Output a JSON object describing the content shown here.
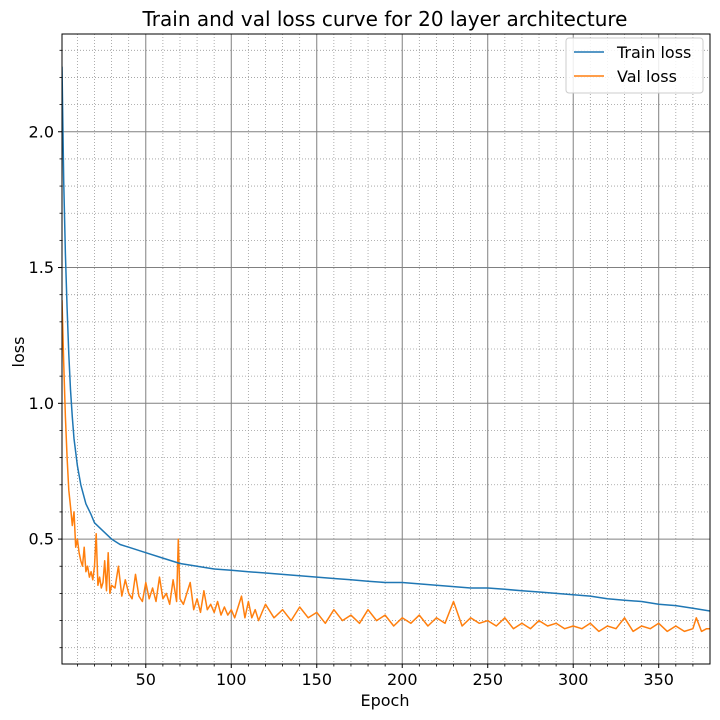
{
  "chart_data": {
    "type": "line",
    "title": "Train and val loss curve for 20 layer architecture",
    "xlabel": "Epoch",
    "ylabel": "loss",
    "xlim": [
      1,
      380
    ],
    "ylim": [
      0.04,
      2.36
    ],
    "xticks": [
      50,
      100,
      150,
      200,
      250,
      300,
      350
    ],
    "yticks": [
      0.5,
      1.0,
      1.5,
      2.0
    ],
    "xtick_labels": [
      "50",
      "100",
      "150",
      "200",
      "250",
      "300",
      "350"
    ],
    "ytick_labels": [
      "0.5",
      "1.0",
      "1.5",
      "2.0"
    ],
    "grid": "major solid + minor dotted",
    "legend": "top-right",
    "series": [
      {
        "name": "Train loss",
        "color": "#1f77b4",
        "points": [
          [
            1,
            2.24
          ],
          [
            2,
            1.82
          ],
          [
            3,
            1.55
          ],
          [
            4,
            1.35
          ],
          [
            5,
            1.18
          ],
          [
            6,
            1.05
          ],
          [
            7,
            0.95
          ],
          [
            8,
            0.87
          ],
          [
            10,
            0.77
          ],
          [
            12,
            0.7
          ],
          [
            15,
            0.63
          ],
          [
            18,
            0.59
          ],
          [
            20,
            0.56
          ],
          [
            25,
            0.53
          ],
          [
            30,
            0.5
          ],
          [
            35,
            0.48
          ],
          [
            40,
            0.47
          ],
          [
            50,
            0.45
          ],
          [
            60,
            0.43
          ],
          [
            70,
            0.41
          ],
          [
            80,
            0.4
          ],
          [
            90,
            0.39
          ],
          [
            100,
            0.385
          ],
          [
            110,
            0.38
          ],
          [
            120,
            0.375
          ],
          [
            130,
            0.37
          ],
          [
            140,
            0.365
          ],
          [
            150,
            0.36
          ],
          [
            160,
            0.355
          ],
          [
            170,
            0.35
          ],
          [
            180,
            0.345
          ],
          [
            190,
            0.34
          ],
          [
            200,
            0.34
          ],
          [
            210,
            0.335
          ],
          [
            220,
            0.33
          ],
          [
            230,
            0.325
          ],
          [
            240,
            0.32
          ],
          [
            250,
            0.32
          ],
          [
            260,
            0.315
          ],
          [
            270,
            0.31
          ],
          [
            280,
            0.305
          ],
          [
            290,
            0.3
          ],
          [
            300,
            0.295
          ],
          [
            310,
            0.29
          ],
          [
            320,
            0.28
          ],
          [
            330,
            0.275
          ],
          [
            340,
            0.27
          ],
          [
            350,
            0.26
          ],
          [
            360,
            0.255
          ],
          [
            370,
            0.245
          ],
          [
            380,
            0.235
          ]
        ]
      },
      {
        "name": "Val loss",
        "color": "#ff7f0e",
        "points": [
          [
            1,
            1.38
          ],
          [
            2,
            1.15
          ],
          [
            3,
            0.95
          ],
          [
            4,
            0.8
          ],
          [
            5,
            0.68
          ],
          [
            6,
            0.62
          ],
          [
            7,
            0.55
          ],
          [
            8,
            0.6
          ],
          [
            9,
            0.47
          ],
          [
            10,
            0.5
          ],
          [
            11,
            0.45
          ],
          [
            12,
            0.42
          ],
          [
            13,
            0.4
          ],
          [
            14,
            0.47
          ],
          [
            15,
            0.38
          ],
          [
            16,
            0.4
          ],
          [
            17,
            0.36
          ],
          [
            18,
            0.38
          ],
          [
            19,
            0.35
          ],
          [
            20,
            0.4
          ],
          [
            21,
            0.52
          ],
          [
            22,
            0.33
          ],
          [
            23,
            0.36
          ],
          [
            24,
            0.32
          ],
          [
            25,
            0.34
          ],
          [
            26,
            0.42
          ],
          [
            27,
            0.31
          ],
          [
            28,
            0.45
          ],
          [
            29,
            0.3
          ],
          [
            30,
            0.33
          ],
          [
            32,
            0.32
          ],
          [
            34,
            0.4
          ],
          [
            36,
            0.29
          ],
          [
            38,
            0.35
          ],
          [
            40,
            0.3
          ],
          [
            42,
            0.28
          ],
          [
            44,
            0.37
          ],
          [
            46,
            0.29
          ],
          [
            48,
            0.27
          ],
          [
            50,
            0.34
          ],
          [
            52,
            0.28
          ],
          [
            54,
            0.32
          ],
          [
            56,
            0.27
          ],
          [
            58,
            0.36
          ],
          [
            60,
            0.28
          ],
          [
            62,
            0.3
          ],
          [
            64,
            0.26
          ],
          [
            66,
            0.35
          ],
          [
            68,
            0.27
          ],
          [
            69,
            0.5
          ],
          [
            70,
            0.28
          ],
          [
            72,
            0.26
          ],
          [
            74,
            0.3
          ],
          [
            76,
            0.34
          ],
          [
            78,
            0.24
          ],
          [
            80,
            0.28
          ],
          [
            82,
            0.23
          ],
          [
            84,
            0.31
          ],
          [
            86,
            0.24
          ],
          [
            88,
            0.26
          ],
          [
            90,
            0.23
          ],
          [
            92,
            0.27
          ],
          [
            94,
            0.22
          ],
          [
            96,
            0.25
          ],
          [
            98,
            0.22
          ],
          [
            100,
            0.24
          ],
          [
            102,
            0.21
          ],
          [
            104,
            0.25
          ],
          [
            106,
            0.29
          ],
          [
            108,
            0.21
          ],
          [
            110,
            0.27
          ],
          [
            112,
            0.21
          ],
          [
            114,
            0.24
          ],
          [
            116,
            0.2
          ],
          [
            118,
            0.23
          ],
          [
            120,
            0.26
          ],
          [
            125,
            0.21
          ],
          [
            130,
            0.24
          ],
          [
            135,
            0.2
          ],
          [
            140,
            0.25
          ],
          [
            145,
            0.21
          ],
          [
            150,
            0.23
          ],
          [
            155,
            0.19
          ],
          [
            160,
            0.24
          ],
          [
            165,
            0.2
          ],
          [
            170,
            0.22
          ],
          [
            175,
            0.19
          ],
          [
            180,
            0.24
          ],
          [
            185,
            0.2
          ],
          [
            190,
            0.22
          ],
          [
            195,
            0.18
          ],
          [
            200,
            0.21
          ],
          [
            205,
            0.19
          ],
          [
            210,
            0.22
          ],
          [
            215,
            0.18
          ],
          [
            220,
            0.21
          ],
          [
            225,
            0.19
          ],
          [
            230,
            0.27
          ],
          [
            235,
            0.18
          ],
          [
            240,
            0.21
          ],
          [
            245,
            0.19
          ],
          [
            250,
            0.2
          ],
          [
            255,
            0.18
          ],
          [
            260,
            0.21
          ],
          [
            265,
            0.17
          ],
          [
            270,
            0.19
          ],
          [
            275,
            0.17
          ],
          [
            280,
            0.2
          ],
          [
            285,
            0.18
          ],
          [
            290,
            0.19
          ],
          [
            295,
            0.17
          ],
          [
            300,
            0.18
          ],
          [
            305,
            0.17
          ],
          [
            310,
            0.19
          ],
          [
            315,
            0.16
          ],
          [
            320,
            0.18
          ],
          [
            325,
            0.17
          ],
          [
            330,
            0.21
          ],
          [
            335,
            0.16
          ],
          [
            340,
            0.18
          ],
          [
            345,
            0.17
          ],
          [
            350,
            0.19
          ],
          [
            355,
            0.16
          ],
          [
            360,
            0.18
          ],
          [
            365,
            0.16
          ],
          [
            370,
            0.17
          ],
          [
            372,
            0.21
          ],
          [
            375,
            0.16
          ],
          [
            378,
            0.17
          ],
          [
            380,
            0.17
          ]
        ]
      }
    ]
  }
}
